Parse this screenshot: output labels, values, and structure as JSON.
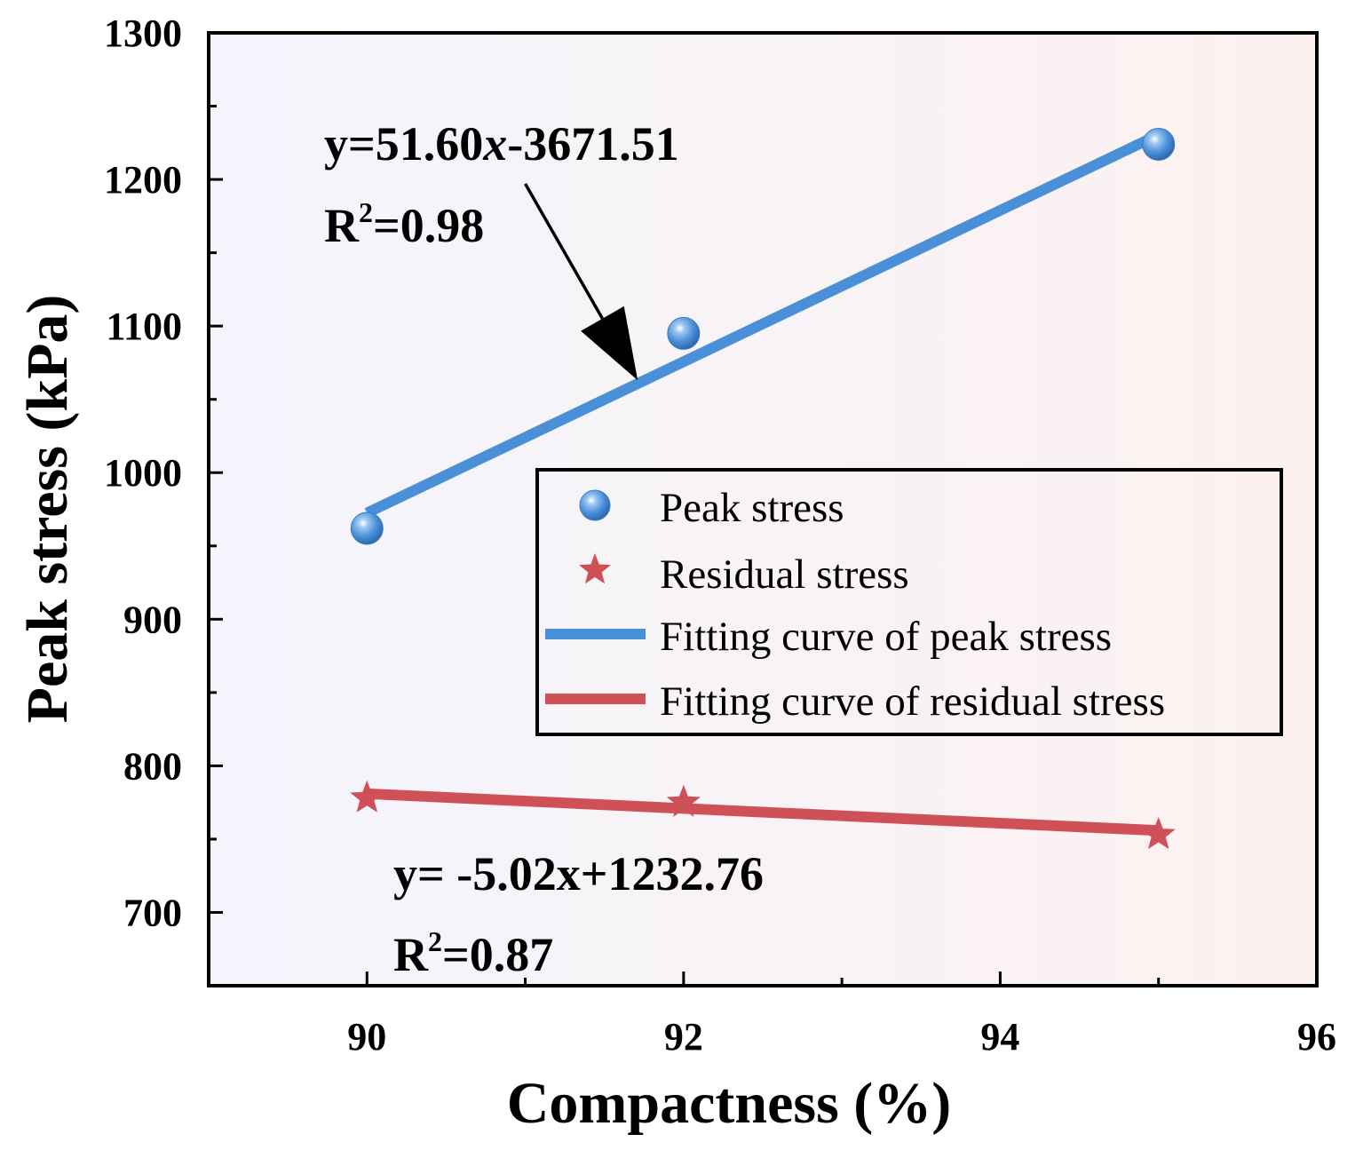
{
  "chart_data": {
    "type": "scatter",
    "title": "",
    "xlabel": "Compactness (%)",
    "ylabel": "Peak stress (kPa)",
    "xlim": [
      89,
      96
    ],
    "ylim": [
      650,
      1300
    ],
    "xticks": [
      90,
      92,
      94,
      96
    ],
    "xtick_labels": [
      "90",
      "92",
      "94",
      "96"
    ],
    "yticks": [
      700,
      800,
      900,
      1000,
      1100,
      1200,
      1300
    ],
    "ytick_labels": [
      "700",
      "800",
      "900",
      "1000",
      "1100",
      "1200",
      "1300"
    ],
    "series": [
      {
        "name": "Peak stress",
        "marker": "sphere",
        "color": "#4A90D9",
        "points": [
          {
            "x": 90,
            "y": 962
          },
          {
            "x": 92,
            "y": 1095
          },
          {
            "x": 95,
            "y": 1224
          }
        ]
      },
      {
        "name": "Residual stress",
        "marker": "star",
        "color": "#D05058",
        "points": [
          {
            "x": 90,
            "y": 778
          },
          {
            "x": 92,
            "y": 775
          },
          {
            "x": 95,
            "y": 753
          }
        ]
      }
    ],
    "fits": [
      {
        "name": "Fitting curve of peak stress",
        "color": "#4A90D9",
        "slope": 51.6,
        "intercept": -3671.51,
        "x_range": [
          90,
          95
        ],
        "equation": {
          "prefix": "y=51.60",
          "var": "x",
          "suffix": "-3671.51"
        },
        "r2": {
          "base": "R",
          "sup": "2",
          "value": "=0.98"
        }
      },
      {
        "name": "Fitting curve of residual stress",
        "color": "#D05058",
        "slope": -5.02,
        "intercept": 1232.76,
        "x_range": [
          90,
          95
        ],
        "equation": {
          "prefix": "y= -5.02x+1232.76",
          "var": "",
          "suffix": ""
        },
        "r2": {
          "base": "R",
          "sup": "2",
          "value": "=0.87"
        }
      }
    ],
    "annotations": [
      {
        "type": "arrow",
        "from": {
          "x": 91.0,
          "y": 1197
        },
        "to": {
          "x": 91.71,
          "y": 1063
        }
      }
    ],
    "legend": {
      "position": "center-right",
      "entries": [
        "Peak stress",
        "Residual stress",
        "Fitting curve of peak stress",
        "Fitting curve of residual stress"
      ]
    },
    "colors": {
      "bg_left": "#F4F5FD",
      "bg_right": "#FCF1EF",
      "axis": "#000000"
    }
  }
}
